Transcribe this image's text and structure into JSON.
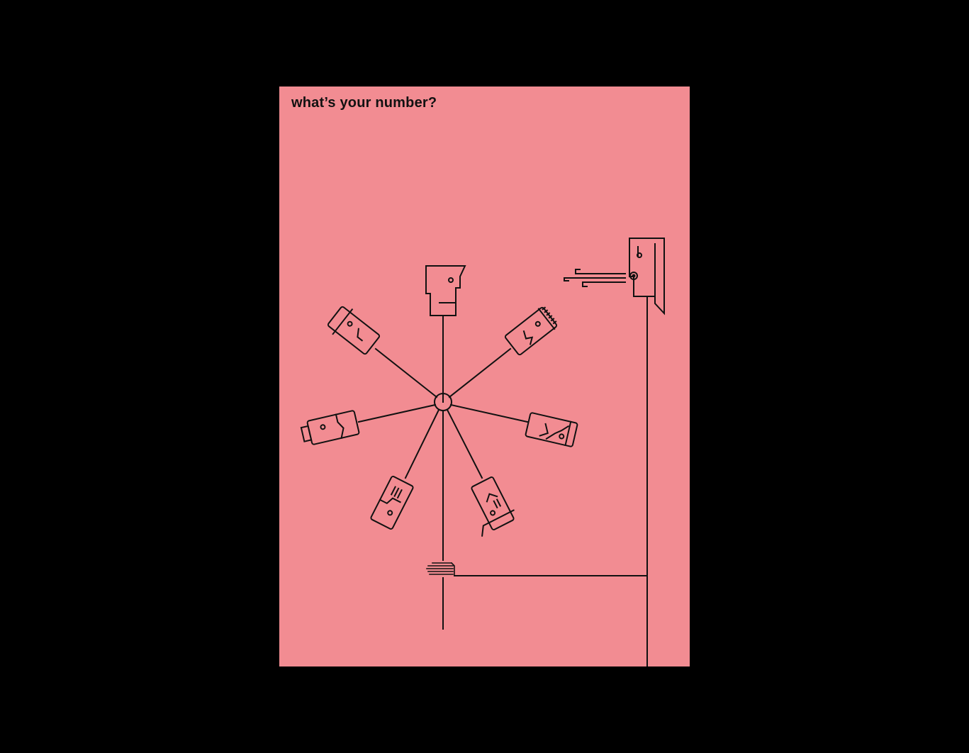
{
  "poster": {
    "title": "what’s your number?",
    "background_color": "#f28c92",
    "frame_color": "#000000",
    "line_color": "#111111"
  },
  "illustration": {
    "icons": [
      "head-icon-top",
      "head-icon-upper-left",
      "head-icon-upper-right",
      "head-icon-left",
      "head-icon-right",
      "head-icon-lower-left",
      "head-icon-lower-right",
      "speaking-head-icon",
      "breath-lines-icon",
      "hub-circle-icon",
      "switch-junction-icon"
    ]
  }
}
